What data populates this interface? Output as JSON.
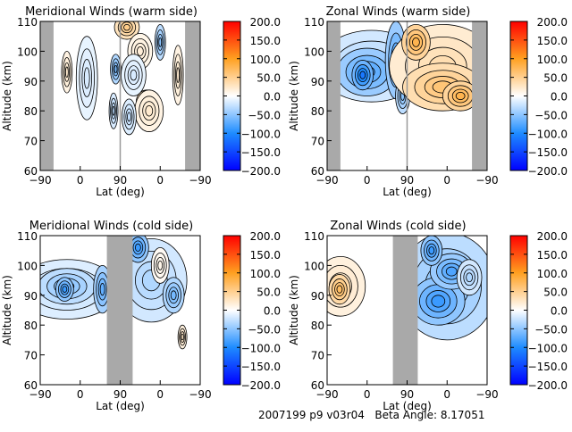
{
  "footer": "2007199 p9 v03r04   Beta Angle: 8.17051",
  "colors": {
    "min": "#0000ff",
    "mid_neg": "#1e8cff",
    "zero": "#ffffff",
    "mid_pos": "#ffa020",
    "max": "#ff0000",
    "nodata": "#a9a9a9"
  },
  "chart_data": [
    {
      "type": "heatmap",
      "subtype": "contour",
      "title": "Meridional Winds (warm side)",
      "xlabel": "Lat (deg)",
      "ylabel": "Altitude (km)",
      "xticks": [
        "-90",
        "0",
        "90",
        "0",
        "-90"
      ],
      "yticks": [
        "60",
        "70",
        "80",
        "90",
        "100",
        "110"
      ],
      "ylim": [
        60,
        110
      ],
      "colorbar": {
        "range": [
          -200,
          200
        ],
        "ticks": [
          "200.0",
          "150.0",
          "100.0",
          "50.0",
          "0.0",
          "-50.0",
          "-100.0",
          "-150.0",
          "-200.0"
        ]
      }
    },
    {
      "type": "heatmap",
      "subtype": "contour",
      "title": "Zonal Winds (warm side)",
      "xlabel": "Lat (deg)",
      "ylabel": "Altitude (km)",
      "xticks": [
        "-90",
        "0",
        "90",
        "0",
        "-90"
      ],
      "yticks": [
        "60",
        "70",
        "80",
        "90",
        "100",
        "110"
      ],
      "ylim": [
        60,
        110
      ],
      "colorbar": {
        "range": [
          -200,
          200
        ],
        "ticks": [
          "200.0",
          "150.0",
          "100.0",
          "50.0",
          "0.0",
          "-50.0",
          "-100.0",
          "-150.0",
          "-200.0"
        ]
      }
    },
    {
      "type": "heatmap",
      "subtype": "contour",
      "title": "Meridional Winds (cold side)",
      "xlabel": "Lat (deg)",
      "ylabel": "Altitude (km)",
      "xticks": [
        "-90",
        "0",
        "90",
        "0",
        "-90"
      ],
      "yticks": [
        "60",
        "70",
        "80",
        "90",
        "100",
        "110"
      ],
      "ylim": [
        60,
        110
      ],
      "colorbar": {
        "range": [
          -200,
          200
        ],
        "ticks": [
          "200.0",
          "150.0",
          "100.0",
          "50.0",
          "0.0",
          "-50.0",
          "-100.0",
          "-150.0",
          "-200.0"
        ]
      }
    },
    {
      "type": "heatmap",
      "subtype": "contour",
      "title": "Zonal Winds (cold side)",
      "xlabel": "Lat (deg)",
      "ylabel": "Altitude (km)",
      "xticks": [
        "-90",
        "0",
        "90",
        "0",
        "-90"
      ],
      "yticks": [
        "60",
        "70",
        "80",
        "90",
        "100",
        "110"
      ],
      "ylim": [
        60,
        110
      ],
      "colorbar": {
        "range": [
          -200,
          200
        ],
        "ticks": [
          "200.0",
          "150.0",
          "100.0",
          "50.0",
          "0.0",
          "-50.0",
          "-100.0",
          "-150.0",
          "-200.0"
        ]
      }
    }
  ]
}
